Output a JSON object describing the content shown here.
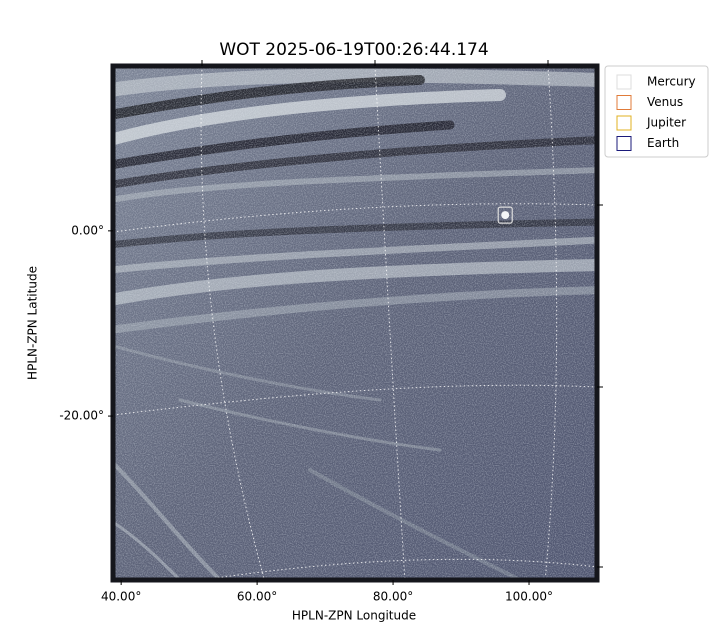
{
  "chart_data": {
    "type": "image",
    "title": "WOT 2025-06-19T00:26:44.174",
    "xlabel": "HPLN-ZPN Longitude",
    "ylabel": "HPLN-ZPN Latitude",
    "xlim": [
      38.8,
      110
    ],
    "ylim": [
      -37.7,
      17.8
    ],
    "xticks": [
      {
        "value": 40,
        "label": "40.00°"
      },
      {
        "value": 60,
        "label": "60.00°"
      },
      {
        "value": 80,
        "label": "80.00°"
      },
      {
        "value": 100,
        "label": "100.00°"
      }
    ],
    "yticks": [
      {
        "value": 0,
        "label": "0.00°"
      },
      {
        "value": -20,
        "label": "-20.00°"
      }
    ],
    "legend": "upper right",
    "series": [
      {
        "name": "Mercury",
        "color": "#dddddd",
        "x": [
          96.5
        ],
        "y": [
          1.7
        ]
      },
      {
        "name": "Venus",
        "color": "#e07b39",
        "x": [],
        "y": []
      },
      {
        "name": "Jupiter",
        "color": "#e0b020",
        "x": [],
        "y": []
      },
      {
        "name": "Earth",
        "color": "#1a1a7a",
        "x": [],
        "y": []
      }
    ]
  }
}
